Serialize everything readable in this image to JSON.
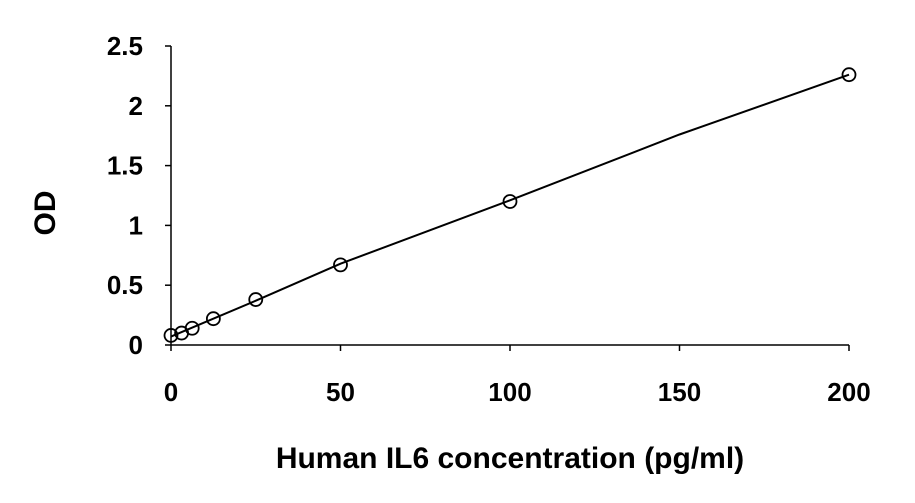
{
  "chart_data": {
    "type": "scatter",
    "title": "",
    "xlabel": "Human IL6 concentration (pg/ml)",
    "ylabel": "OD",
    "xlim": [
      0,
      200
    ],
    "ylim": [
      0,
      2.5
    ],
    "x_ticks": [
      0,
      50,
      100,
      150,
      200
    ],
    "x_tick_labels": [
      "0",
      "50",
      "100",
      "150",
      "200"
    ],
    "y_ticks": [
      0,
      0.5,
      1,
      1.5,
      2,
      2.5
    ],
    "y_tick_labels": [
      "0",
      "0.5",
      "1",
      "1.5",
      "2",
      "2.5"
    ],
    "grid": false,
    "legend": "none",
    "series": [
      {
        "marker": "open-circle",
        "color": "#000000",
        "x": [
          0,
          3.125,
          6.25,
          12.5,
          25,
          50,
          100,
          200
        ],
        "y": [
          0.08,
          0.1,
          0.14,
          0.22,
          0.38,
          0.67,
          1.2,
          2.26
        ]
      }
    ],
    "trendline": {
      "type": "smooth-curve",
      "color": "#000000",
      "x": [
        0,
        25,
        50,
        100,
        150,
        200
      ],
      "y": [
        0.07,
        0.37,
        0.68,
        1.21,
        1.76,
        2.26
      ]
    }
  }
}
